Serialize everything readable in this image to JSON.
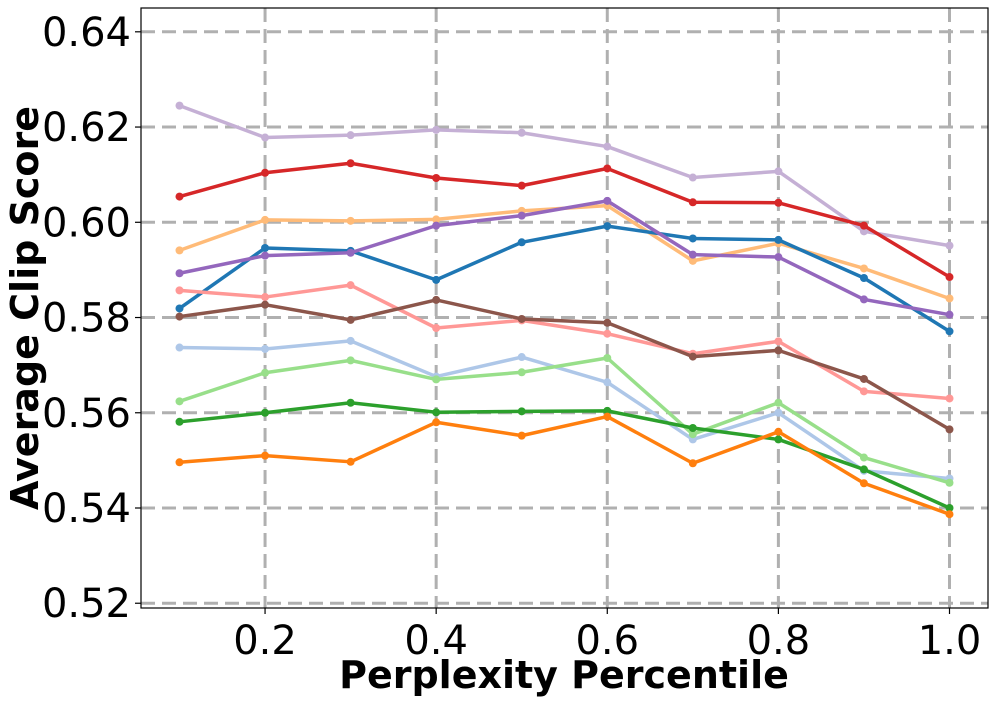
{
  "chart_data": {
    "type": "line",
    "title": "",
    "xlabel": "Perplexity Percentile",
    "ylabel": "Average Clip Score",
    "xlim": [
      0.055,
      1.045
    ],
    "ylim": [
      0.519,
      0.645
    ],
    "xticks": [
      0.2,
      0.4,
      0.6,
      0.8,
      1.0
    ],
    "xtick_labels": [
      "0.2",
      "0.4",
      "0.6",
      "0.8",
      "1.0"
    ],
    "yticks": [
      0.52,
      0.54,
      0.56,
      0.58,
      0.6,
      0.62,
      0.64
    ],
    "ytick_labels": [
      "0.52",
      "0.54",
      "0.56",
      "0.58",
      "0.60",
      "0.62",
      "0.64"
    ],
    "grid": true,
    "x": [
      0.1,
      0.2,
      0.3,
      0.4,
      0.5,
      0.6,
      0.7,
      0.8,
      0.9,
      1.0
    ],
    "series": [
      {
        "color": "#c5b0d5",
        "values": [
          0.6245,
          0.6178,
          0.6183,
          0.6194,
          0.6188,
          0.6159,
          0.6094,
          0.6107,
          0.5981,
          0.5951
        ]
      },
      {
        "color": "#d62728",
        "values": [
          0.6054,
          0.6104,
          0.6124,
          0.6093,
          0.6077,
          0.6113,
          0.6042,
          0.6041,
          0.5993,
          0.5885
        ]
      },
      {
        "color": "#ffbb78",
        "values": [
          0.5941,
          0.6005,
          0.6003,
          0.6006,
          0.6024,
          0.6035,
          0.5919,
          0.5956,
          0.5903,
          0.584
        ]
      },
      {
        "color": "#1f77b4",
        "values": [
          0.5819,
          0.5946,
          0.594,
          0.5879,
          0.5958,
          0.5992,
          0.5966,
          0.5963,
          0.5883,
          0.5771
        ]
      },
      {
        "color": "#9467bd",
        "values": [
          0.5893,
          0.593,
          0.5936,
          0.5993,
          0.6014,
          0.6045,
          0.5932,
          0.5927,
          0.5838,
          0.5806
        ]
      },
      {
        "color": "#ff9896",
        "values": [
          0.5857,
          0.5843,
          0.5868,
          0.5778,
          0.5794,
          0.5766,
          0.5724,
          0.575,
          0.5645,
          0.563
        ]
      },
      {
        "color": "#8c564b",
        "values": [
          0.5802,
          0.5827,
          0.5795,
          0.5837,
          0.5797,
          0.5789,
          0.5718,
          0.5731,
          0.5671,
          0.5565
        ]
      },
      {
        "color": "#aec7e8",
        "values": [
          0.5737,
          0.5734,
          0.5751,
          0.5676,
          0.5717,
          0.5664,
          0.5544,
          0.56,
          0.5478,
          0.5462
        ]
      },
      {
        "color": "#98df8a",
        "values": [
          0.5624,
          0.5684,
          0.571,
          0.567,
          0.5685,
          0.5715,
          0.5555,
          0.5621,
          0.5506,
          0.5453
        ]
      },
      {
        "color": "#2ca02c",
        "values": [
          0.5581,
          0.56,
          0.5621,
          0.5601,
          0.5603,
          0.5604,
          0.5568,
          0.5544,
          0.5481,
          0.54
        ]
      },
      {
        "color": "#ff7f0e",
        "values": [
          0.5496,
          0.551,
          0.5497,
          0.558,
          0.5552,
          0.5592,
          0.5494,
          0.556,
          0.5452,
          0.5387
        ]
      }
    ]
  }
}
